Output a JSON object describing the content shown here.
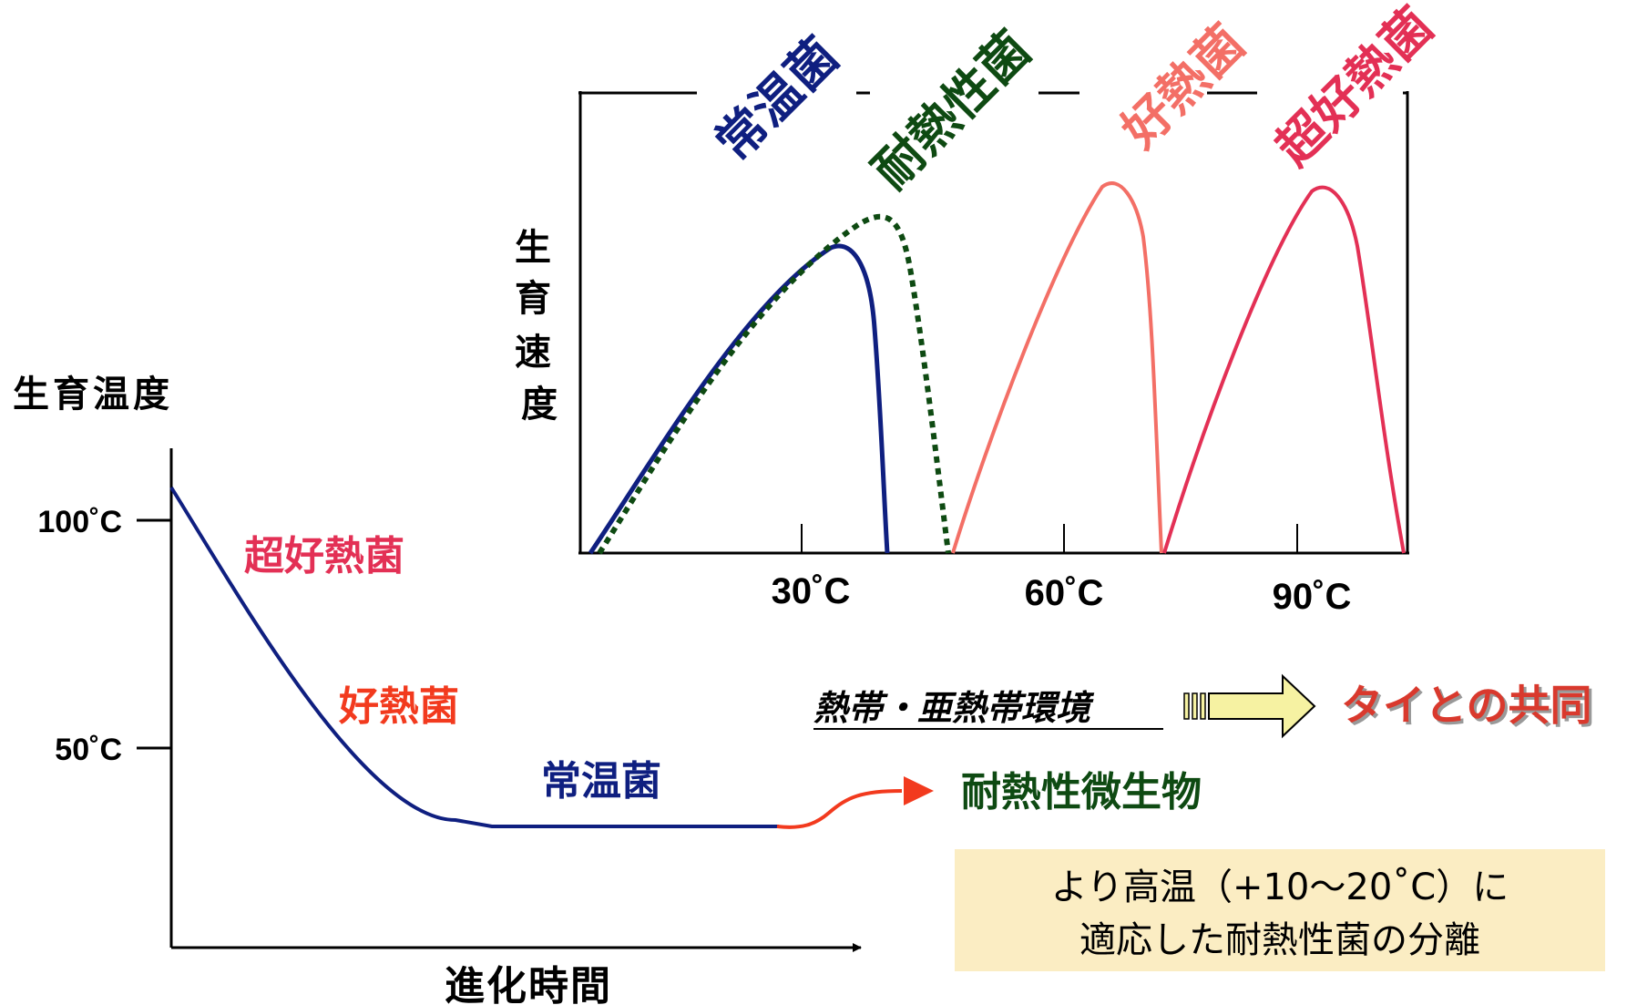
{
  "colors": {
    "mesophile": "#0f1f80",
    "thermotolerant": "#0e4a12",
    "thermophile": "#f36f66",
    "hyperthermophile": "#e33055",
    "red_label": "#d9392d",
    "evolution_curve": "#0f1f80",
    "evolution_tail": "#f23a1e",
    "black": "#000000",
    "note_bg": "#fbedc3",
    "arrow_fill": "#f6f2a2"
  },
  "inset_chart": {
    "y_label": "生育速度",
    "x_ticks": [
      "30˚C",
      "60˚C",
      "90˚C"
    ],
    "x_tick_values": [
      30,
      60,
      90
    ],
    "curve_labels": {
      "mesophile": "常温菌",
      "thermotolerant": "耐熱性菌",
      "thermophile": "好熱菌",
      "hyperthermophile": "超好熱菌"
    }
  },
  "evolution_chart": {
    "y_label": "生育温度",
    "x_label": "進化時間",
    "y_ticks": [
      "100˚C",
      "50˚C"
    ],
    "y_tick_values": [
      100,
      50
    ],
    "zone_labels": {
      "hyperthermophile": "超好熱菌",
      "thermophile": "好熱菌",
      "mesophile": "常温菌"
    },
    "outcome_label": "耐熱性微生物"
  },
  "collaboration": {
    "environment": "熱帯・亜熱帯環境",
    "partner": "タイとの共同"
  },
  "note": {
    "line1": "より高温（+10〜20˚C）に",
    "line2": "適応した耐熱性菌の分離"
  }
}
